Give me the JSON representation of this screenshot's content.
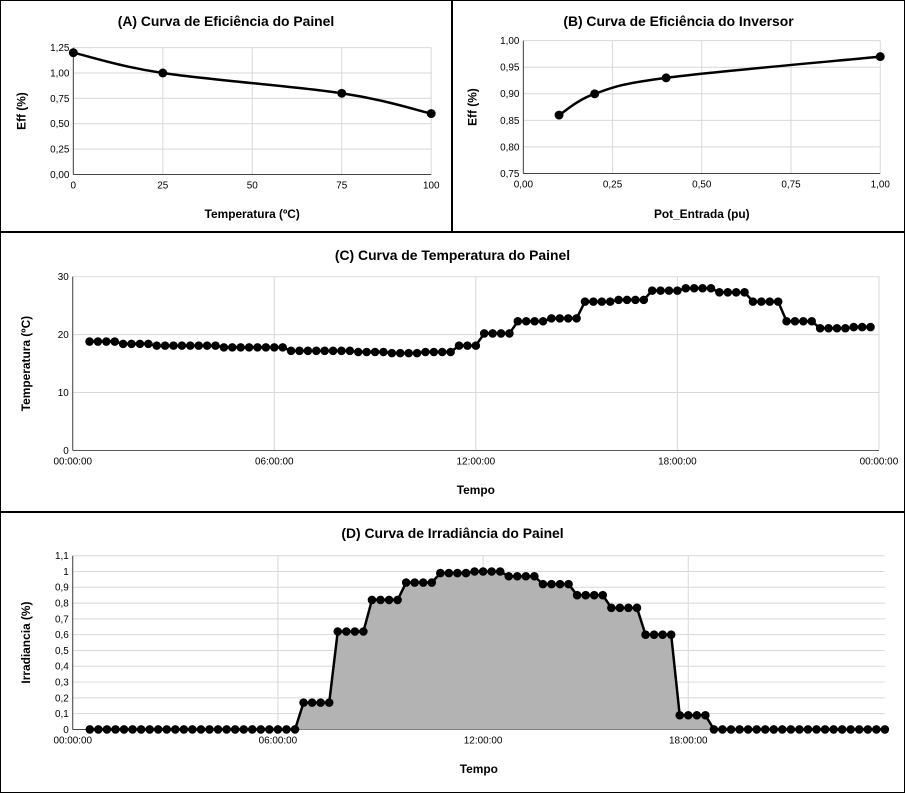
{
  "chart_data": [
    {
      "id": "a",
      "type": "line",
      "title": "(A) Curva de Eficiência do Painel",
      "xlabel": "Temperatura (ºC)",
      "ylabel": "Eff (%)",
      "x": [
        0,
        25,
        75,
        100
      ],
      "series": [
        {
          "values": [
            1.2,
            1.0,
            0.8,
            0.6
          ]
        }
      ],
      "xlim": [
        0,
        100
      ],
      "ylim": [
        0,
        1.25
      ],
      "xticks": [
        0,
        25,
        50,
        75,
        100
      ],
      "xtick_labels": [
        "0",
        "25",
        "50",
        "75",
        "100"
      ],
      "yticks": [
        0,
        0.25,
        0.5,
        0.75,
        1.0,
        1.25
      ],
      "ytick_labels": [
        "0,00",
        "0,25",
        "0,50",
        "0,75",
        "1,00",
        "1,25"
      ],
      "grid": true,
      "markers": true,
      "line_color": "#000000",
      "grid_color": "#d8d8d8"
    },
    {
      "id": "b",
      "type": "line",
      "title": "(B) Curva de Eficiência do Inversor",
      "xlabel": "Pot_Entrada  (pu)",
      "ylabel": "Eff (%)",
      "x": [
        0.1,
        0.2,
        0.4,
        1.0
      ],
      "series": [
        {
          "values": [
            0.86,
            0.9,
            0.93,
            0.97
          ]
        }
      ],
      "xlim": [
        0,
        1
      ],
      "ylim": [
        0.75,
        1.0
      ],
      "xticks": [
        0,
        0.25,
        0.5,
        0.75,
        1.0
      ],
      "xtick_labels": [
        "0,00",
        "0,25",
        "0,50",
        "0,75",
        "1,00"
      ],
      "yticks": [
        0.75,
        0.8,
        0.85,
        0.9,
        0.95,
        1.0
      ],
      "ytick_labels": [
        "0,75",
        "0,80",
        "0,85",
        "0,90",
        "0,95",
        "1,00"
      ],
      "grid": true,
      "markers": true,
      "line_color": "#000000",
      "grid_color": "#d8d8d8"
    },
    {
      "id": "c",
      "type": "line",
      "title": "(C) Curva de Temperatura do Painel",
      "xlabel": "Tempo",
      "ylabel": "Temperatura (ºC)",
      "x": [
        "00:30",
        "00:45",
        "01:00",
        "01:15",
        "01:30",
        "01:45",
        "02:00",
        "02:15",
        "02:30",
        "02:45",
        "03:00",
        "03:15",
        "03:30",
        "03:45",
        "04:00",
        "04:15",
        "04:30",
        "04:45",
        "05:00",
        "05:15",
        "05:30",
        "05:45",
        "06:00",
        "06:15",
        "06:30",
        "06:45",
        "07:00",
        "07:15",
        "07:30",
        "07:45",
        "08:00",
        "08:15",
        "08:30",
        "08:45",
        "09:00",
        "09:15",
        "09:30",
        "09:45",
        "10:00",
        "10:15",
        "10:30",
        "10:45",
        "11:00",
        "11:15",
        "11:30",
        "11:45",
        "12:00",
        "12:15",
        "12:30",
        "12:45",
        "13:00",
        "13:15",
        "13:30",
        "13:45",
        "14:00",
        "14:15",
        "14:30",
        "14:45",
        "15:00",
        "15:15",
        "15:30",
        "15:45",
        "16:00",
        "16:15",
        "16:30",
        "16:45",
        "17:00",
        "17:15",
        "17:30",
        "17:45",
        "18:00",
        "18:15",
        "18:30",
        "18:45",
        "19:00",
        "19:15",
        "19:30",
        "19:45",
        "20:00",
        "20:15",
        "20:30",
        "20:45",
        "21:00",
        "21:15",
        "21:30",
        "21:45",
        "22:00",
        "22:15",
        "22:30",
        "22:45",
        "23:00",
        "23:15",
        "23:30",
        "23:45"
      ],
      "series": [
        {
          "values": [
            18.8,
            18.8,
            18.8,
            18.8,
            18.4,
            18.4,
            18.4,
            18.4,
            18.1,
            18.1,
            18.1,
            18.1,
            18.1,
            18.1,
            18.1,
            18.1,
            17.8,
            17.8,
            17.8,
            17.8,
            17.8,
            17.8,
            17.8,
            17.8,
            17.2,
            17.2,
            17.2,
            17.2,
            17.2,
            17.2,
            17.2,
            17.2,
            17.0,
            17.0,
            17.0,
            17.0,
            16.8,
            16.8,
            16.8,
            16.8,
            17.0,
            17.0,
            17.0,
            17.0,
            18.1,
            18.1,
            18.1,
            20.2,
            20.2,
            20.2,
            20.2,
            22.3,
            22.3,
            22.3,
            22.3,
            22.8,
            22.8,
            22.8,
            22.8,
            25.7,
            25.7,
            25.7,
            25.7,
            26.0,
            26.0,
            26.0,
            26.0,
            27.6,
            27.6,
            27.6,
            27.6,
            28.0,
            28.0,
            28.0,
            28.0,
            27.3,
            27.3,
            27.3,
            27.3,
            25.7,
            25.7,
            25.7,
            25.7,
            22.3,
            22.3,
            22.3,
            22.3,
            21.1,
            21.1,
            21.1,
            21.1,
            21.3,
            21.3,
            21.3
          ]
        }
      ],
      "xlim": [
        "00:00:00",
        "24:00:00"
      ],
      "ylim": [
        0,
        30
      ],
      "xticks_hours": [
        0,
        6,
        12,
        18,
        24
      ],
      "xtick_labels": [
        "00:00:00",
        "06:00:00",
        "12:00:00",
        "18:00:00",
        "00:00:00"
      ],
      "yticks": [
        0,
        10,
        20,
        30
      ],
      "ytick_labels": [
        "0",
        "10",
        "20",
        "30"
      ],
      "grid": true,
      "markers": true,
      "line_color": "#000000",
      "grid_color": "#d8d8d8"
    },
    {
      "id": "d",
      "type": "area",
      "title": "(D) Curva de Irradiância do Painel",
      "xlabel": "Tempo",
      "ylabel": "Irradiancia (%)",
      "x": [
        "00:30",
        "00:45",
        "01:00",
        "01:15",
        "01:30",
        "01:45",
        "02:00",
        "02:15",
        "02:30",
        "02:45",
        "03:00",
        "03:15",
        "03:30",
        "03:45",
        "04:00",
        "04:15",
        "04:30",
        "04:45",
        "05:00",
        "05:15",
        "05:30",
        "05:45",
        "06:00",
        "06:15",
        "06:30",
        "06:45",
        "07:00",
        "07:15",
        "07:30",
        "07:45",
        "08:00",
        "08:15",
        "08:30",
        "08:45",
        "09:00",
        "09:15",
        "09:30",
        "09:45",
        "10:00",
        "10:15",
        "10:30",
        "10:45",
        "11:00",
        "11:15",
        "11:30",
        "11:45",
        "12:00",
        "12:15",
        "12:30",
        "12:45",
        "13:00",
        "13:15",
        "13:30",
        "13:45",
        "14:00",
        "14:15",
        "14:30",
        "14:45",
        "15:00",
        "15:15",
        "15:30",
        "15:45",
        "16:00",
        "16:15",
        "16:30",
        "16:45",
        "17:00",
        "17:15",
        "17:30",
        "17:45",
        "18:00",
        "18:15",
        "18:30",
        "18:45",
        "19:00",
        "19:15",
        "19:30",
        "19:45",
        "20:00",
        "20:15",
        "20:30",
        "20:45",
        "21:00",
        "21:15",
        "21:30",
        "21:45",
        "22:00",
        "22:15",
        "22:30",
        "22:45",
        "23:00",
        "23:15",
        "23:30",
        "23:45"
      ],
      "series": [
        {
          "values": [
            0,
            0,
            0,
            0,
            0,
            0,
            0,
            0,
            0,
            0,
            0,
            0,
            0,
            0,
            0,
            0,
            0,
            0,
            0,
            0,
            0,
            0,
            0,
            0,
            0,
            0.17,
            0.17,
            0.17,
            0.17,
            0.62,
            0.62,
            0.62,
            0.62,
            0.82,
            0.82,
            0.82,
            0.82,
            0.93,
            0.93,
            0.93,
            0.93,
            0.99,
            0.99,
            0.99,
            0.99,
            1.0,
            1.0,
            1.0,
            1.0,
            0.97,
            0.97,
            0.97,
            0.97,
            0.92,
            0.92,
            0.92,
            0.92,
            0.85,
            0.85,
            0.85,
            0.85,
            0.77,
            0.77,
            0.77,
            0.77,
            0.6,
            0.6,
            0.6,
            0.6,
            0.09,
            0.09,
            0.09,
            0.09,
            0,
            0,
            0,
            0,
            0,
            0,
            0,
            0,
            0,
            0,
            0,
            0,
            0,
            0,
            0,
            0,
            0,
            0,
            0,
            0,
            0
          ]
        }
      ],
      "xlim": [
        "00:00:00",
        "23:45:00"
      ],
      "ylim": [
        0,
        1.1
      ],
      "xticks_hours": [
        0,
        6,
        12,
        18
      ],
      "xtick_labels": [
        "00:00:00",
        "06:00:00",
        "12:00:00",
        "18:00:00"
      ],
      "yticks": [
        0,
        0.1,
        0.2,
        0.3,
        0.4,
        0.5,
        0.6,
        0.7,
        0.8,
        0.9,
        1.0,
        1.1
      ],
      "ytick_labels": [
        "0",
        "0,1",
        "0,2",
        "0,3",
        "0,4",
        "0,5",
        "0,6",
        "0,7",
        "0,8",
        "0,9",
        "1",
        "1,1"
      ],
      "grid": true,
      "markers": true,
      "line_color": "#000000",
      "fill_color": "#b3b3b3",
      "grid_color": "#d8d8d8"
    }
  ]
}
